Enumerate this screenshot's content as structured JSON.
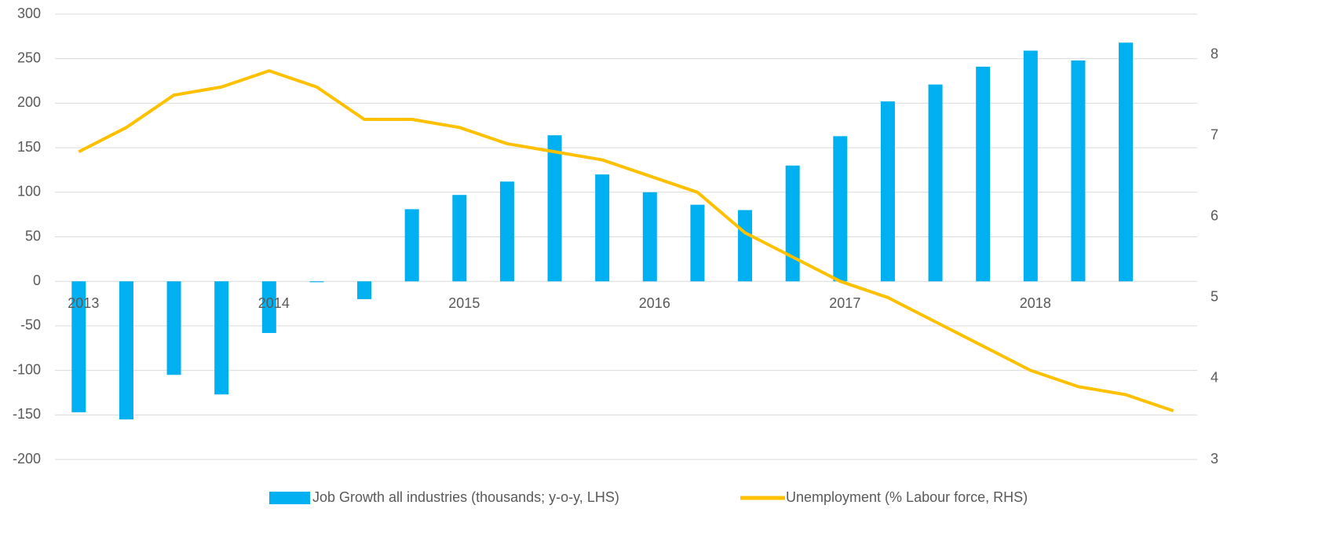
{
  "chart_data": {
    "type": "bar",
    "categories": [
      "2013",
      null,
      null,
      null,
      "2014",
      null,
      null,
      null,
      "2015",
      null,
      null,
      null,
      "2016",
      null,
      null,
      null,
      "2017",
      null,
      null,
      null,
      "2018",
      null,
      null,
      null
    ],
    "series": [
      {
        "name": "Job Growth all industries (thousands; y-o-y, LHS)",
        "type": "bar",
        "color": "#00b0f0",
        "values": [
          -147,
          -155,
          -105,
          -127,
          -58,
          -1,
          -20,
          81,
          97,
          112,
          164,
          120,
          100,
          86,
          80,
          130,
          163,
          202,
          221,
          241,
          259,
          248,
          268,
          null
        ]
      },
      {
        "name": "Unemployment (% Labour force, RHS)",
        "type": "line",
        "axis": "y2",
        "color": "#ffc000",
        "values": [
          6.8,
          7.1,
          7.5,
          7.6,
          7.8,
          7.6,
          7.2,
          7.2,
          7.1,
          6.9,
          6.8,
          6.7,
          6.5,
          6.3,
          5.8,
          5.5,
          5.2,
          5.0,
          4.7,
          4.4,
          4.1,
          3.9,
          3.8,
          3.6
        ]
      }
    ],
    "ylim": [
      -200,
      300
    ],
    "yticks": [
      -200,
      -150,
      -100,
      -50,
      0,
      50,
      100,
      150,
      200,
      250,
      300
    ],
    "y2lim": [
      3,
      8.5
    ],
    "y2ticks": [
      3,
      4,
      5,
      6,
      7,
      8
    ],
    "grid": true,
    "legend": "bottom"
  }
}
